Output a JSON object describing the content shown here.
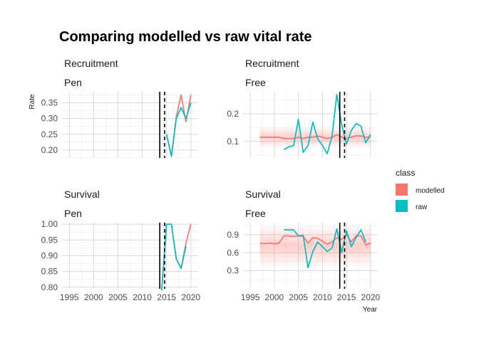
{
  "title": "Comparing modelled vs raw vital rate",
  "ylabel": "Rate",
  "xlabel": "Year",
  "legend": {
    "title": "class",
    "items": [
      {
        "label": "modelled",
        "color": "#F8766D"
      },
      {
        "label": "raw",
        "color": "#00BFC4"
      }
    ]
  },
  "chart_data": {
    "type": "line",
    "x_ticks": [
      1995,
      2000,
      2005,
      2010,
      2015,
      2020
    ],
    "xlim": [
      1993.5,
      2021.5
    ],
    "vline_solid": 2013.6,
    "vline_dashed": 2014.6,
    "panels": [
      {
        "id": "recruitment-pen",
        "strip": [
          "Recruitment",
          "Pen"
        ],
        "ylim": [
          0.175,
          0.385
        ],
        "yticks": [
          0.2,
          0.25,
          0.3,
          0.35
        ],
        "ytick_labels": [
          "0.20",
          "0.25",
          "0.30",
          "0.35"
        ],
        "series": [
          {
            "name": "modelled",
            "x": [
              2015,
              2016,
              2017,
              2018,
              2019,
              2020
            ],
            "y": [
              0.25,
              0.18,
              0.305,
              0.375,
              0.29,
              0.375
            ]
          },
          {
            "name": "raw",
            "x": [
              2015,
              2016,
              2017,
              2018,
              2019,
              2020
            ],
            "y": [
              0.25,
              0.18,
              0.3,
              0.335,
              0.3,
              0.35
            ]
          }
        ]
      },
      {
        "id": "recruitment-free",
        "strip": [
          "Recruitment",
          "Free"
        ],
        "ylim": [
          0.04,
          0.28
        ],
        "yticks": [
          0.1,
          0.2
        ],
        "ytick_labels": [
          "0.1",
          "0.2"
        ],
        "series": [
          {
            "name": "modelled",
            "x": [
              1997,
              1998,
              1999,
              2000,
              2001,
              2002,
              2003,
              2004,
              2005,
              2006,
              2007,
              2008,
              2009,
              2010,
              2011,
              2012,
              2013,
              2014,
              2015,
              2016,
              2017,
              2018,
              2019,
              2020
            ],
            "y": [
              0.115,
              0.115,
              0.115,
              0.115,
              0.115,
              0.11,
              0.11,
              0.11,
              0.115,
              0.11,
              0.115,
              0.115,
              0.12,
              0.115,
              0.11,
              0.115,
              0.125,
              0.115,
              0.11,
              0.115,
              0.12,
              0.12,
              0.115,
              0.115
            ],
            "ribbon": [
              0.075,
              0.155
            ]
          },
          {
            "name": "raw",
            "x": [
              2002,
              2003,
              2004,
              2005,
              2006,
              2007,
              2008,
              2009,
              2010,
              2011,
              2012,
              2013,
              2014,
              2015,
              2016,
              2017,
              2018,
              2019,
              2020
            ],
            "y": [
              0.07,
              0.08,
              0.085,
              0.18,
              0.06,
              0.085,
              0.17,
              0.11,
              0.085,
              0.055,
              0.12,
              0.27,
              0.16,
              0.09,
              0.14,
              0.165,
              0.155,
              0.095,
              0.125
            ]
          }
        ]
      },
      {
        "id": "survival-pen",
        "strip": [
          "Survival",
          "Pen"
        ],
        "ylim": [
          0.795,
          1.005
        ],
        "yticks": [
          0.8,
          0.85,
          0.9,
          0.95,
          1.0
        ],
        "ytick_labels": [
          "0.80",
          "0.85",
          "0.90",
          "0.95",
          "1.00"
        ],
        "series": [
          {
            "name": "modelled",
            "x": [
              2014,
              2015,
              2016,
              2017,
              2018,
              2019,
              2020
            ],
            "y": [
              0.79,
              1.0,
              1.0,
              0.89,
              0.86,
              0.94,
              1.0
            ]
          },
          {
            "name": "raw",
            "x": [
              2014,
              2015,
              2016,
              2017,
              2018,
              2019
            ],
            "y": [
              0.79,
              1.0,
              1.0,
              0.89,
              0.86,
              0.93
            ]
          }
        ]
      },
      {
        "id": "survival-free",
        "strip": [
          "Survival",
          "Free"
        ],
        "ylim": [
          0.0,
          1.1
        ],
        "yticks": [
          0.3,
          0.6,
          0.9
        ],
        "ytick_labels": [
          "0.3",
          "0.6",
          "0.9"
        ],
        "series": [
          {
            "name": "modelled",
            "x": [
              1997,
              1998,
              1999,
              2000,
              2001,
              2002,
              2003,
              2004,
              2005,
              2006,
              2007,
              2008,
              2009,
              2010,
              2011,
              2012,
              2013,
              2014,
              2015,
              2016,
              2017,
              2018,
              2019,
              2020
            ],
            "y": [
              0.76,
              0.75,
              0.76,
              0.75,
              0.76,
              0.88,
              0.88,
              0.87,
              0.88,
              0.87,
              0.76,
              0.85,
              0.84,
              0.79,
              0.74,
              0.78,
              0.85,
              0.82,
              0.9,
              0.78,
              0.88,
              0.88,
              0.73,
              0.76
            ],
            "ribbon": [
              0.35,
              1.07
            ]
          },
          {
            "name": "raw",
            "x": [
              2002,
              2003,
              2004,
              2005,
              2006,
              2007,
              2008,
              2009,
              2010,
              2011,
              2012,
              2013,
              2014,
              2015,
              2016,
              2017,
              2018,
              2019,
              2020
            ],
            "y": [
              0.98,
              0.98,
              0.98,
              0.88,
              0.89,
              0.35,
              0.62,
              0.78,
              0.7,
              0.62,
              0.68,
              1.0,
              0.6,
              0.97,
              0.7,
              0.85,
              0.98,
              0.78,
              null
            ]
          }
        ]
      }
    ]
  }
}
